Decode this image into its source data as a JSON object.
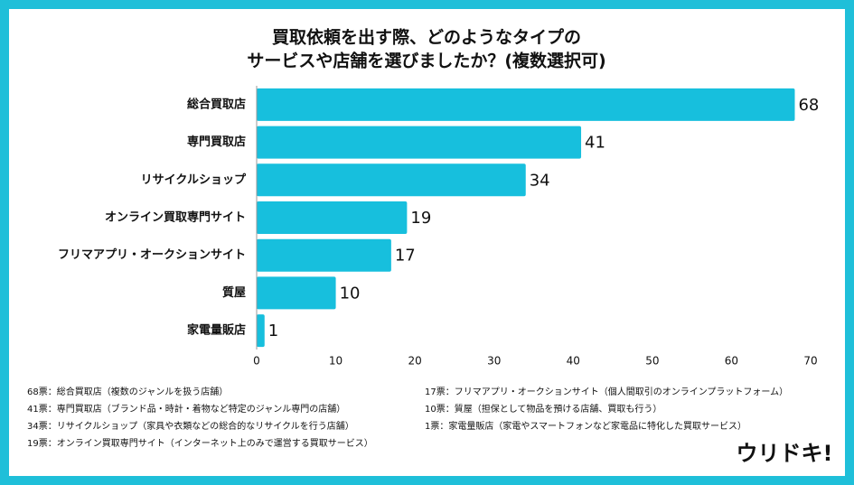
{
  "chart_data": {
    "type": "barh",
    "title": [
      "買取依頼を出す際、どのようなタイプの",
      "サービスや店舗を選びましたか？(複数選択可)"
    ],
    "categories": [
      "総合買取店",
      "専門買取店",
      "リサイクルショップ",
      "オンライン買取専門サイト",
      "フリマアプリ・オークションサイト",
      "質屋",
      "家電量販店"
    ],
    "values": [
      68,
      41,
      34,
      19,
      17,
      10,
      1
    ],
    "color": "#17bfdd",
    "xlim": [
      0,
      70
    ],
    "xticks": [
      0,
      10,
      20,
      30,
      40,
      50,
      60,
      70
    ],
    "notes": [
      "68票：総合買取店（複数のジャンルを扱う店舗）",
      "41票：専門買取店（ブランド品・時計・着物など特定のジャンル専門の店舗）",
      "34票：リサイクルショップ（家具や衣類などの総合的なリサイクルを行う店舗）",
      "19票：オンライン買取専門サイト（インターネット上のみで運営する買取サービス）",
      "17票：フリマアプリ・オークションサイト（個人間取引のオンラインプラットフォーム）",
      "10票：質屋（担保として物品を預ける店舗、買取も行う）",
      "1票：家電量販店（家電やスマートフォンなど家電品に特化した買取サービス）"
    ],
    "logo": "ウリドキ!"
  }
}
